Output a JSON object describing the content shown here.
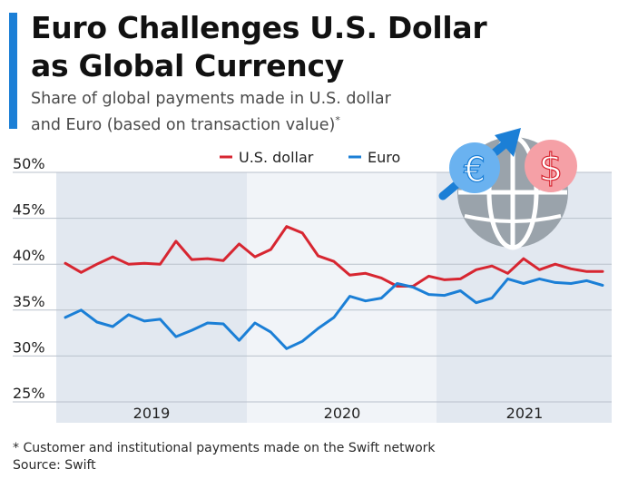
{
  "header": {
    "title_line1": "Euro Challenges U.S. Dollar",
    "title_line2": "as Global Currency",
    "subtitle_line1": "Share of global payments made in U.S. dollar",
    "subtitle_line2": "and Euro (based on transaction value)",
    "subtitle_mark": "*"
  },
  "footer": {
    "note": "* Customer and institutional payments made on the Swift network",
    "source": "Source: Swift"
  },
  "icons": {
    "euro_symbol": "€",
    "dollar_symbol": "$"
  },
  "chart_data": {
    "type": "line",
    "ylim": [
      25,
      50
    ],
    "y_ticks": [
      "50%",
      "45%",
      "40%",
      "35%",
      "30%",
      "25%"
    ],
    "y_tick_values": [
      50,
      45,
      40,
      35,
      30,
      25
    ],
    "year_labels": [
      "2019",
      "2020",
      "2021"
    ],
    "grid": true,
    "legend_position": "top",
    "series": [
      {
        "name": "U.S. dollar",
        "color": "#d72631",
        "values": [
          40.1,
          39.1,
          40.0,
          40.8,
          40.0,
          40.1,
          40.0,
          42.5,
          40.5,
          40.6,
          40.4,
          42.2,
          40.8,
          41.6,
          44.1,
          43.4,
          40.9,
          40.3,
          38.8,
          39.0,
          38.5,
          37.6,
          37.6,
          38.7,
          38.3,
          38.4,
          39.4,
          39.8,
          39.0,
          40.6,
          39.4,
          40.0,
          39.5,
          39.2,
          39.2
        ]
      },
      {
        "name": "Euro",
        "color": "#1b7fd6",
        "values": [
          34.2,
          35.0,
          33.7,
          33.2,
          34.5,
          33.8,
          34.0,
          32.1,
          32.8,
          33.6,
          33.5,
          31.7,
          33.6,
          32.6,
          30.8,
          31.6,
          33.0,
          34.2,
          36.5,
          36.0,
          36.3,
          37.9,
          37.5,
          36.7,
          36.6,
          37.1,
          35.8,
          36.3,
          38.4,
          37.9,
          38.4,
          38.0,
          37.9,
          38.2,
          37.7
        ]
      }
    ]
  }
}
